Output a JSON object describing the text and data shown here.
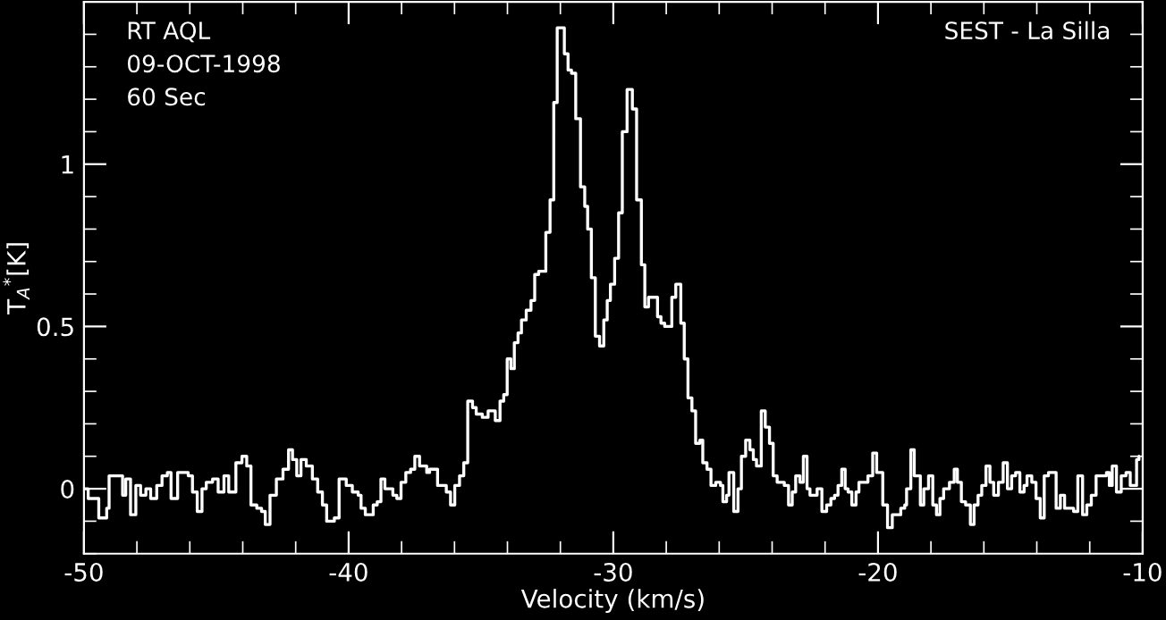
{
  "chart_data": {
    "type": "step",
    "xlabel": "Velocity (km/s)",
    "ylabel": "T$_{A}$$^{*}$[K]",
    "annotations": [
      "RT AQL",
      "09-OCT-1998",
      "60 Sec",
      "SEST - La Silla"
    ],
    "xlim": [
      -50,
      -10
    ],
    "ylim": [
      -0.2,
      1.5
    ],
    "xticks": [
      -50,
      -40,
      -30,
      -20,
      -10
    ],
    "yticks": [
      0,
      0.5,
      1
    ],
    "grid": false,
    "legend": false,
    "series": [
      {
        "color": "#ffffff",
        "x": [
          -50.0,
          -49.84,
          -49.44,
          -49.14,
          -49.05,
          -48.76,
          -48.54,
          -48.42,
          -48.24,
          -48.04,
          -47.86,
          -47.66,
          -47.48,
          -47.25,
          -47.05,
          -46.85,
          -46.71,
          -46.46,
          -46.06,
          -45.9,
          -45.72,
          -45.54,
          -45.38,
          -45.14,
          -44.93,
          -44.71,
          -44.53,
          -44.26,
          -44.03,
          -43.85,
          -43.69,
          -43.47,
          -43.29,
          -43.15,
          -42.97,
          -42.73,
          -42.48,
          -42.27,
          -42.12,
          -41.96,
          -41.8,
          -41.6,
          -41.37,
          -41.17,
          -40.99,
          -40.83,
          -40.54,
          -40.36,
          -40.09,
          -39.86,
          -39.64,
          -39.53,
          -39.37,
          -39.07,
          -38.92,
          -38.78,
          -38.63,
          -38.33,
          -38.18,
          -38.02,
          -37.84,
          -37.66,
          -37.5,
          -37.32,
          -37.05,
          -36.94,
          -36.64,
          -36.31,
          -36.15,
          -35.99,
          -35.81,
          -35.65,
          -35.5,
          -35.32,
          -35.18,
          -34.95,
          -34.73,
          -34.46,
          -34.28,
          -34.14,
          -34.01,
          -33.87,
          -33.74,
          -33.6,
          -33.47,
          -33.29,
          -33.11,
          -32.97,
          -32.82,
          -32.55,
          -32.39,
          -32.25,
          -32.12,
          -31.98,
          -31.85,
          -31.71,
          -31.58,
          -31.42,
          -31.24,
          -31.08,
          -30.97,
          -30.83,
          -30.68,
          -30.52,
          -30.36,
          -30.23,
          -30.11,
          -29.95,
          -29.8,
          -29.66,
          -29.48,
          -29.28,
          -29.12,
          -28.94,
          -28.81,
          -28.67,
          -28.49,
          -28.33,
          -28.2,
          -28.06,
          -27.79,
          -27.64,
          -27.45,
          -27.32,
          -27.18,
          -27.03,
          -26.89,
          -26.73,
          -26.62,
          -26.46,
          -26.31,
          -26.13,
          -25.95,
          -25.86,
          -25.72,
          -25.63,
          -25.45,
          -25.29,
          -25.16,
          -25.0,
          -24.84,
          -24.71,
          -24.59,
          -24.41,
          -24.26,
          -24.1,
          -23.96,
          -23.81,
          -23.54,
          -23.38,
          -23.24,
          -23.11,
          -22.95,
          -22.82,
          -22.68,
          -22.57,
          -22.3,
          -22.12,
          -21.94,
          -21.78,
          -21.64,
          -21.51,
          -21.37,
          -21.24,
          -21.13,
          -20.99,
          -20.83,
          -20.72,
          -20.38,
          -20.2,
          -20.05,
          -19.82,
          -19.64,
          -19.46,
          -19.14,
          -18.99,
          -18.92,
          -18.76,
          -18.63,
          -18.4,
          -18.27,
          -18.09,
          -17.93,
          -17.79,
          -17.66,
          -17.52,
          -17.3,
          -17.12,
          -17.0,
          -16.85,
          -16.69,
          -16.51,
          -16.37,
          -16.22,
          -16.08,
          -15.92,
          -15.77,
          -15.63,
          -15.45,
          -15.27,
          -15.11,
          -14.95,
          -14.8,
          -14.64,
          -14.48,
          -14.37,
          -14.19,
          -14.03,
          -13.87,
          -13.72,
          -13.56,
          -13.27,
          -13.11,
          -12.95,
          -12.61,
          -12.45,
          -12.27,
          -12.11,
          -11.94,
          -11.76,
          -11.53,
          -11.37,
          -11.26,
          -11.15,
          -10.99,
          -10.81,
          -10.63,
          -10.47,
          -10.23,
          -10.14
        ],
        "values": [
          0.0,
          -0.03,
          -0.09,
          -0.06,
          0.04,
          0.04,
          -0.02,
          0.03,
          -0.08,
          0.01,
          -0.02,
          0.0,
          -0.03,
          0.01,
          0.04,
          0.05,
          -0.03,
          0.05,
          0.04,
          -0.01,
          -0.07,
          0.0,
          0.02,
          0.03,
          -0.01,
          0.04,
          -0.01,
          0.08,
          0.1,
          0.07,
          -0.05,
          -0.06,
          -0.07,
          -0.11,
          -0.02,
          0.03,
          0.06,
          0.12,
          0.09,
          0.04,
          0.09,
          0.07,
          0.03,
          -0.01,
          -0.05,
          -0.1,
          -0.09,
          0.03,
          0.01,
          -0.01,
          -0.02,
          -0.06,
          -0.08,
          -0.05,
          -0.04,
          0.03,
          0.0,
          -0.02,
          -0.03,
          0.02,
          0.05,
          0.06,
          0.1,
          0.07,
          0.05,
          0.06,
          0.01,
          -0.01,
          -0.05,
          0.01,
          0.04,
          0.08,
          0.27,
          0.25,
          0.23,
          0.22,
          0.24,
          0.21,
          0.27,
          0.29,
          0.4,
          0.37,
          0.45,
          0.48,
          0.52,
          0.55,
          0.58,
          0.66,
          0.67,
          0.79,
          0.89,
          1.19,
          1.42,
          1.42,
          1.34,
          1.29,
          1.28,
          1.14,
          0.93,
          0.87,
          0.8,
          0.65,
          0.47,
          0.44,
          0.52,
          0.58,
          0.63,
          0.71,
          0.85,
          1.1,
          1.23,
          1.17,
          0.89,
          0.69,
          0.56,
          0.59,
          0.59,
          0.53,
          0.51,
          0.5,
          0.59,
          0.63,
          0.51,
          0.4,
          0.28,
          0.24,
          0.14,
          0.15,
          0.08,
          0.06,
          0.01,
          0.02,
          0.01,
          -0.04,
          -0.02,
          0.05,
          -0.07,
          0.0,
          0.1,
          0.15,
          0.12,
          0.09,
          0.07,
          0.24,
          0.19,
          0.14,
          0.04,
          0.02,
          0.01,
          -0.05,
          -0.01,
          0.04,
          0.02,
          0.1,
          0.0,
          -0.02,
          0.0,
          -0.07,
          -0.05,
          -0.03,
          -0.02,
          0.01,
          0.06,
          0.0,
          -0.01,
          -0.05,
          -0.01,
          0.02,
          0.04,
          0.11,
          0.05,
          -0.05,
          -0.12,
          -0.08,
          -0.06,
          -0.05,
          0.0,
          0.12,
          0.04,
          -0.05,
          0.0,
          0.04,
          -0.05,
          -0.08,
          -0.03,
          0.0,
          0.02,
          0.06,
          0.02,
          -0.04,
          -0.05,
          -0.11,
          -0.05,
          -0.02,
          0.01,
          0.07,
          0.02,
          -0.02,
          0.02,
          0.08,
          0.0,
          0.04,
          0.05,
          -0.01,
          0.01,
          0.04,
          0.02,
          -0.03,
          -0.09,
          0.04,
          0.05,
          -0.06,
          -0.02,
          -0.06,
          -0.07,
          0.04,
          -0.08,
          -0.05,
          -0.02,
          0.04,
          0.04,
          0.05,
          0.01,
          0.07,
          -0.01,
          0.04,
          0.05,
          0.01,
          0.09,
          0.1
        ]
      }
    ]
  }
}
